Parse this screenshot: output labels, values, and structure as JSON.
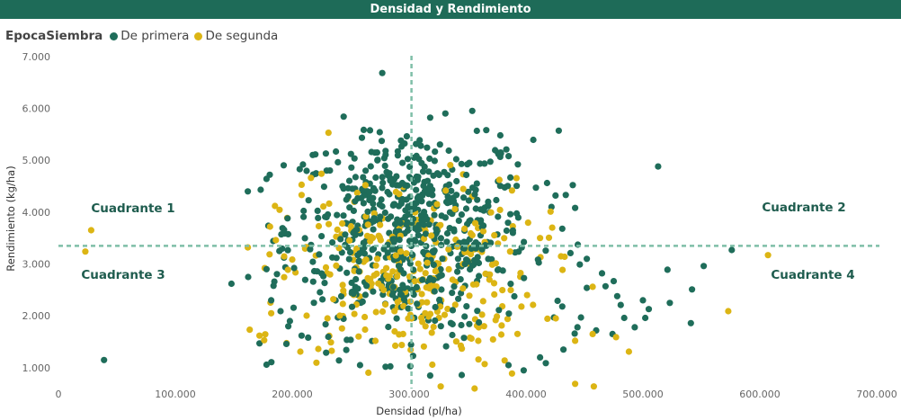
{
  "header": {
    "title": "Densidad y Rendimiento"
  },
  "legend": {
    "title": "EpocaSiembra",
    "items": [
      {
        "label": "De primera",
        "color": "#1f6d5a"
      },
      {
        "label": "De segunda",
        "color": "#dcb514"
      }
    ]
  },
  "chart_data": {
    "type": "scatter",
    "xlabel": "Densidad (pl/ha)",
    "ylabel": "Rendimiento (kg/ha)",
    "xlim": [
      0,
      700000
    ],
    "ylim": [
      600,
      7100
    ],
    "xticks": [
      0,
      100000,
      200000,
      300000,
      400000,
      500000,
      600000,
      700000
    ],
    "xtick_labels": [
      "0",
      "100.000",
      "200.000",
      "300.000",
      "400.000",
      "500.000",
      "600.000",
      "700.000"
    ],
    "yticks": [
      1000,
      2000,
      3000,
      4000,
      5000,
      6000,
      7000
    ],
    "ytick_labels": [
      "1.000",
      "2.000",
      "3.000",
      "4.000",
      "5.000",
      "6.000",
      "7.000"
    ],
    "reference_lines": {
      "x": 302000,
      "y": 3350,
      "color": "#7fbfa8"
    },
    "quadrant_labels": [
      "Cuadrante 1",
      "Cuadrante 2",
      "Cuadrante 3",
      "Cuadrante 4"
    ],
    "series": [
      {
        "name": "De primera",
        "color": "#1f6d5a",
        "points": [
          [
            277000,
            6680
          ],
          [
            39000,
            1150
          ],
          [
            148000,
            2620
          ],
          [
            513000,
            4880
          ],
          [
            576000,
            3270
          ],
          [
            552000,
            2960
          ],
          [
            541000,
            1860
          ],
          [
            542000,
            2510
          ],
          [
            521000,
            2890
          ],
          [
            523000,
            2250
          ],
          [
            500000,
            2300
          ],
          [
            505000,
            2130
          ],
          [
            502000,
            1960
          ],
          [
            493000,
            1780
          ],
          [
            484000,
            1960
          ],
          [
            481000,
            2210
          ],
          [
            475000,
            2670
          ],
          [
            478000,
            2380
          ],
          [
            465000,
            2820
          ],
          [
            468000,
            2570
          ],
          [
            474000,
            1650
          ],
          [
            452000,
            2540
          ],
          [
            428000,
            5570
          ],
          [
            354000,
            5950
          ],
          [
            331000,
            5900
          ],
          [
            318000,
            5820
          ],
          [
            298000,
            5460
          ],
          [
            366000,
            5580
          ],
          [
            378000,
            5480
          ],
          [
            244000,
            5840
          ],
          [
            178000,
            4640
          ],
          [
            162000,
            4400
          ],
          [
            173000,
            4430
          ],
          [
            393000,
            4920
          ],
          [
            418000,
            4560
          ],
          [
            440000,
            4520
          ],
          [
            434000,
            4330
          ],
          [
            442000,
            4080
          ],
          [
            431000,
            3680
          ],
          [
            438000,
            3210
          ],
          [
            446000,
            2990
          ],
          [
            452000,
            3100
          ],
          [
            427000,
            2290
          ],
          [
            431000,
            2180
          ],
          [
            444000,
            1780
          ],
          [
            447000,
            1970
          ],
          [
            460000,
            1720
          ],
          [
            432000,
            1350
          ],
          [
            412000,
            1200
          ],
          [
            398000,
            950
          ],
          [
            385000,
            1050
          ],
          [
            345000,
            860
          ],
          [
            318000,
            850
          ],
          [
            301000,
            1030
          ],
          [
            258000,
            1050
          ],
          [
            240000,
            1140
          ],
          [
            229000,
            1290
          ],
          [
            178000,
            1060
          ],
          [
            172000,
            1470
          ],
          [
            195000,
            1460
          ],
          [
            208000,
            1620
          ],
          [
            198000,
            1900
          ],
          [
            190000,
            2090
          ],
          [
            182000,
            2300
          ],
          [
            184000,
            2580
          ],
          [
            178000,
            2900
          ],
          [
            189000,
            3250
          ],
          [
            193000,
            3660
          ],
          [
            196000,
            3880
          ]
        ]
      },
      {
        "name": "De segunda",
        "color": "#dcb514",
        "points": [
          [
            28000,
            3650
          ],
          [
            23000,
            3240
          ],
          [
            231000,
            5530
          ],
          [
            607000,
            3170
          ],
          [
            573000,
            2090
          ],
          [
            488000,
            1310
          ],
          [
            477000,
            1590
          ],
          [
            457000,
            1650
          ],
          [
            442000,
            1520
          ],
          [
            457000,
            2560
          ],
          [
            433000,
            3140
          ],
          [
            421000,
            4010
          ],
          [
            412000,
            3500
          ],
          [
            172000,
            1620
          ],
          [
            176000,
            1530
          ],
          [
            162000,
            3320
          ],
          [
            181000,
            3720
          ],
          [
            186000,
            3460
          ],
          [
            182000,
            2050
          ],
          [
            208000,
            4330
          ],
          [
            216000,
            4660
          ],
          [
            225000,
            4740
          ],
          [
            442000,
            690
          ],
          [
            458000,
            640
          ],
          [
            327000,
            640
          ],
          [
            356000,
            600
          ],
          [
            388000,
            890
          ]
        ]
      }
    ]
  }
}
